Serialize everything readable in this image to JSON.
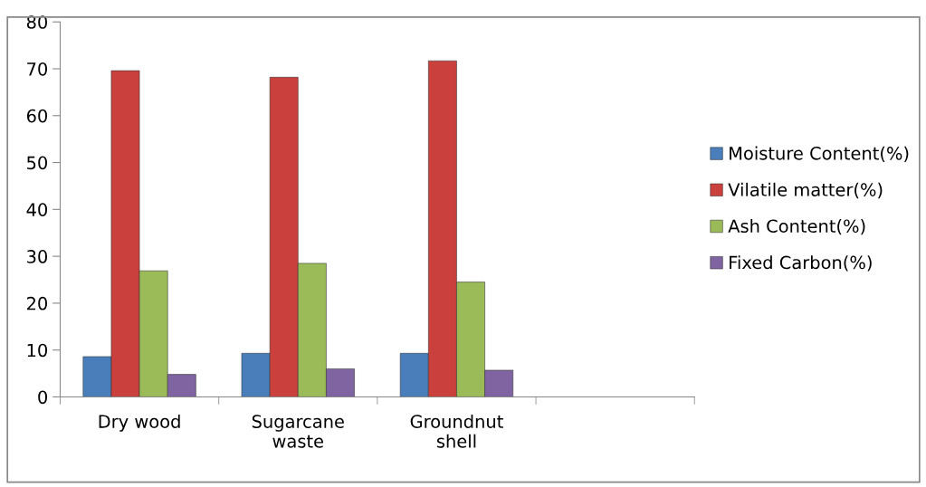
{
  "chart_data": {
    "type": "bar",
    "categories": [
      "Dry wood",
      "Sugarcane\nwaste",
      "Groundnut\nshell",
      null
    ],
    "series": [
      {
        "name": "Moisture Content(%)",
        "color": "#4a7ebb",
        "values": [
          8.6,
          9.3,
          9.3,
          null
        ]
      },
      {
        "name": "Vilatile matter(%)",
        "color": "#c9403c",
        "values": [
          69.6,
          68.2,
          71.7,
          null
        ]
      },
      {
        "name": "Ash Content(%)",
        "color": "#9bbb59",
        "values": [
          26.9,
          28.5,
          24.5,
          null
        ]
      },
      {
        "name": "Fixed Carbon(%)",
        "color": "#8064a2",
        "values": [
          4.8,
          6.0,
          5.7,
          null
        ]
      }
    ],
    "ylim": [
      0,
      80
    ],
    "yticks": [
      0,
      10,
      20,
      30,
      40,
      50,
      60,
      70,
      80
    ],
    "grid": false,
    "legend": "right"
  }
}
